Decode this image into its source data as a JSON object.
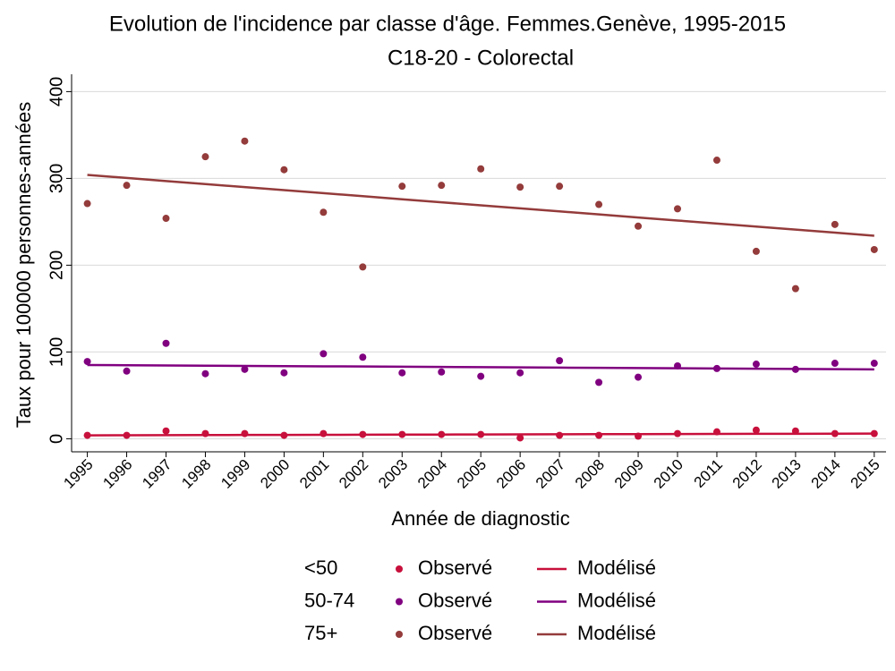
{
  "chart_data": {
    "type": "scatter-line",
    "title": "Evolution de l'incidence par classe d'âge. Femmes.Genève, 1995-2015",
    "subtitle": "C18-20 - Colorectal",
    "x_label": "Année de diagnostic",
    "y_label": "Taux pour 100000 personnes-années",
    "observed_label": "Observé",
    "modeled_label": "Modélisé",
    "x": [
      1995,
      1996,
      1997,
      1998,
      1999,
      2000,
      2001,
      2002,
      2003,
      2004,
      2005,
      2006,
      2007,
      2008,
      2009,
      2010,
      2011,
      2012,
      2013,
      2014,
      2015
    ],
    "xlim": [
      1994.6,
      2015.3
    ],
    "xticks": [
      1995,
      1996,
      1997,
      1998,
      1999,
      2000,
      2001,
      2002,
      2003,
      2004,
      2005,
      2006,
      2007,
      2008,
      2009,
      2010,
      2011,
      2012,
      2013,
      2014,
      2015
    ],
    "ylim": [
      -15,
      420
    ],
    "yticks": [
      0,
      100,
      200,
      300,
      400
    ],
    "grid": true,
    "series": [
      {
        "name": "<50",
        "color": "#c8103c",
        "observed": [
          4,
          4,
          9,
          6,
          6,
          4,
          6,
          5,
          5,
          5,
          5,
          1,
          4,
          4,
          3,
          6,
          8,
          10,
          9,
          6,
          6
        ],
        "modeled": [
          4,
          4.1,
          4.2,
          4.3,
          4.4,
          4.5,
          4.6,
          4.7,
          4.8,
          4.9,
          5,
          5.1,
          5.2,
          5.3,
          5.4,
          5.5,
          5.6,
          5.7,
          5.8,
          5.9,
          6
        ]
      },
      {
        "name": "50-74",
        "color": "#800080",
        "observed": [
          89,
          78,
          110,
          75,
          80,
          76,
          98,
          94,
          76,
          77,
          72,
          76,
          90,
          65,
          71,
          84,
          81,
          86,
          80,
          87,
          87
        ],
        "modeled": [
          85,
          84.75,
          84.5,
          84.25,
          84,
          83.75,
          83.5,
          83.25,
          83,
          82.75,
          82.5,
          82.25,
          82,
          81.75,
          81.5,
          81.25,
          81,
          80.75,
          80.5,
          80.25,
          80
        ]
      },
      {
        "name": "75+",
        "color": "#943b3b",
        "observed": [
          271,
          292,
          254,
          325,
          343,
          310,
          261,
          198,
          291,
          292,
          311,
          290,
          291,
          270,
          245,
          265,
          321,
          216,
          173,
          247,
          218
        ],
        "modeled": [
          304,
          300.5,
          297,
          293.5,
          290,
          286.5,
          283,
          279.5,
          276,
          272.5,
          269,
          265.5,
          262,
          258.5,
          255,
          251.5,
          248,
          244.5,
          241,
          237.5,
          234
        ]
      }
    ]
  }
}
